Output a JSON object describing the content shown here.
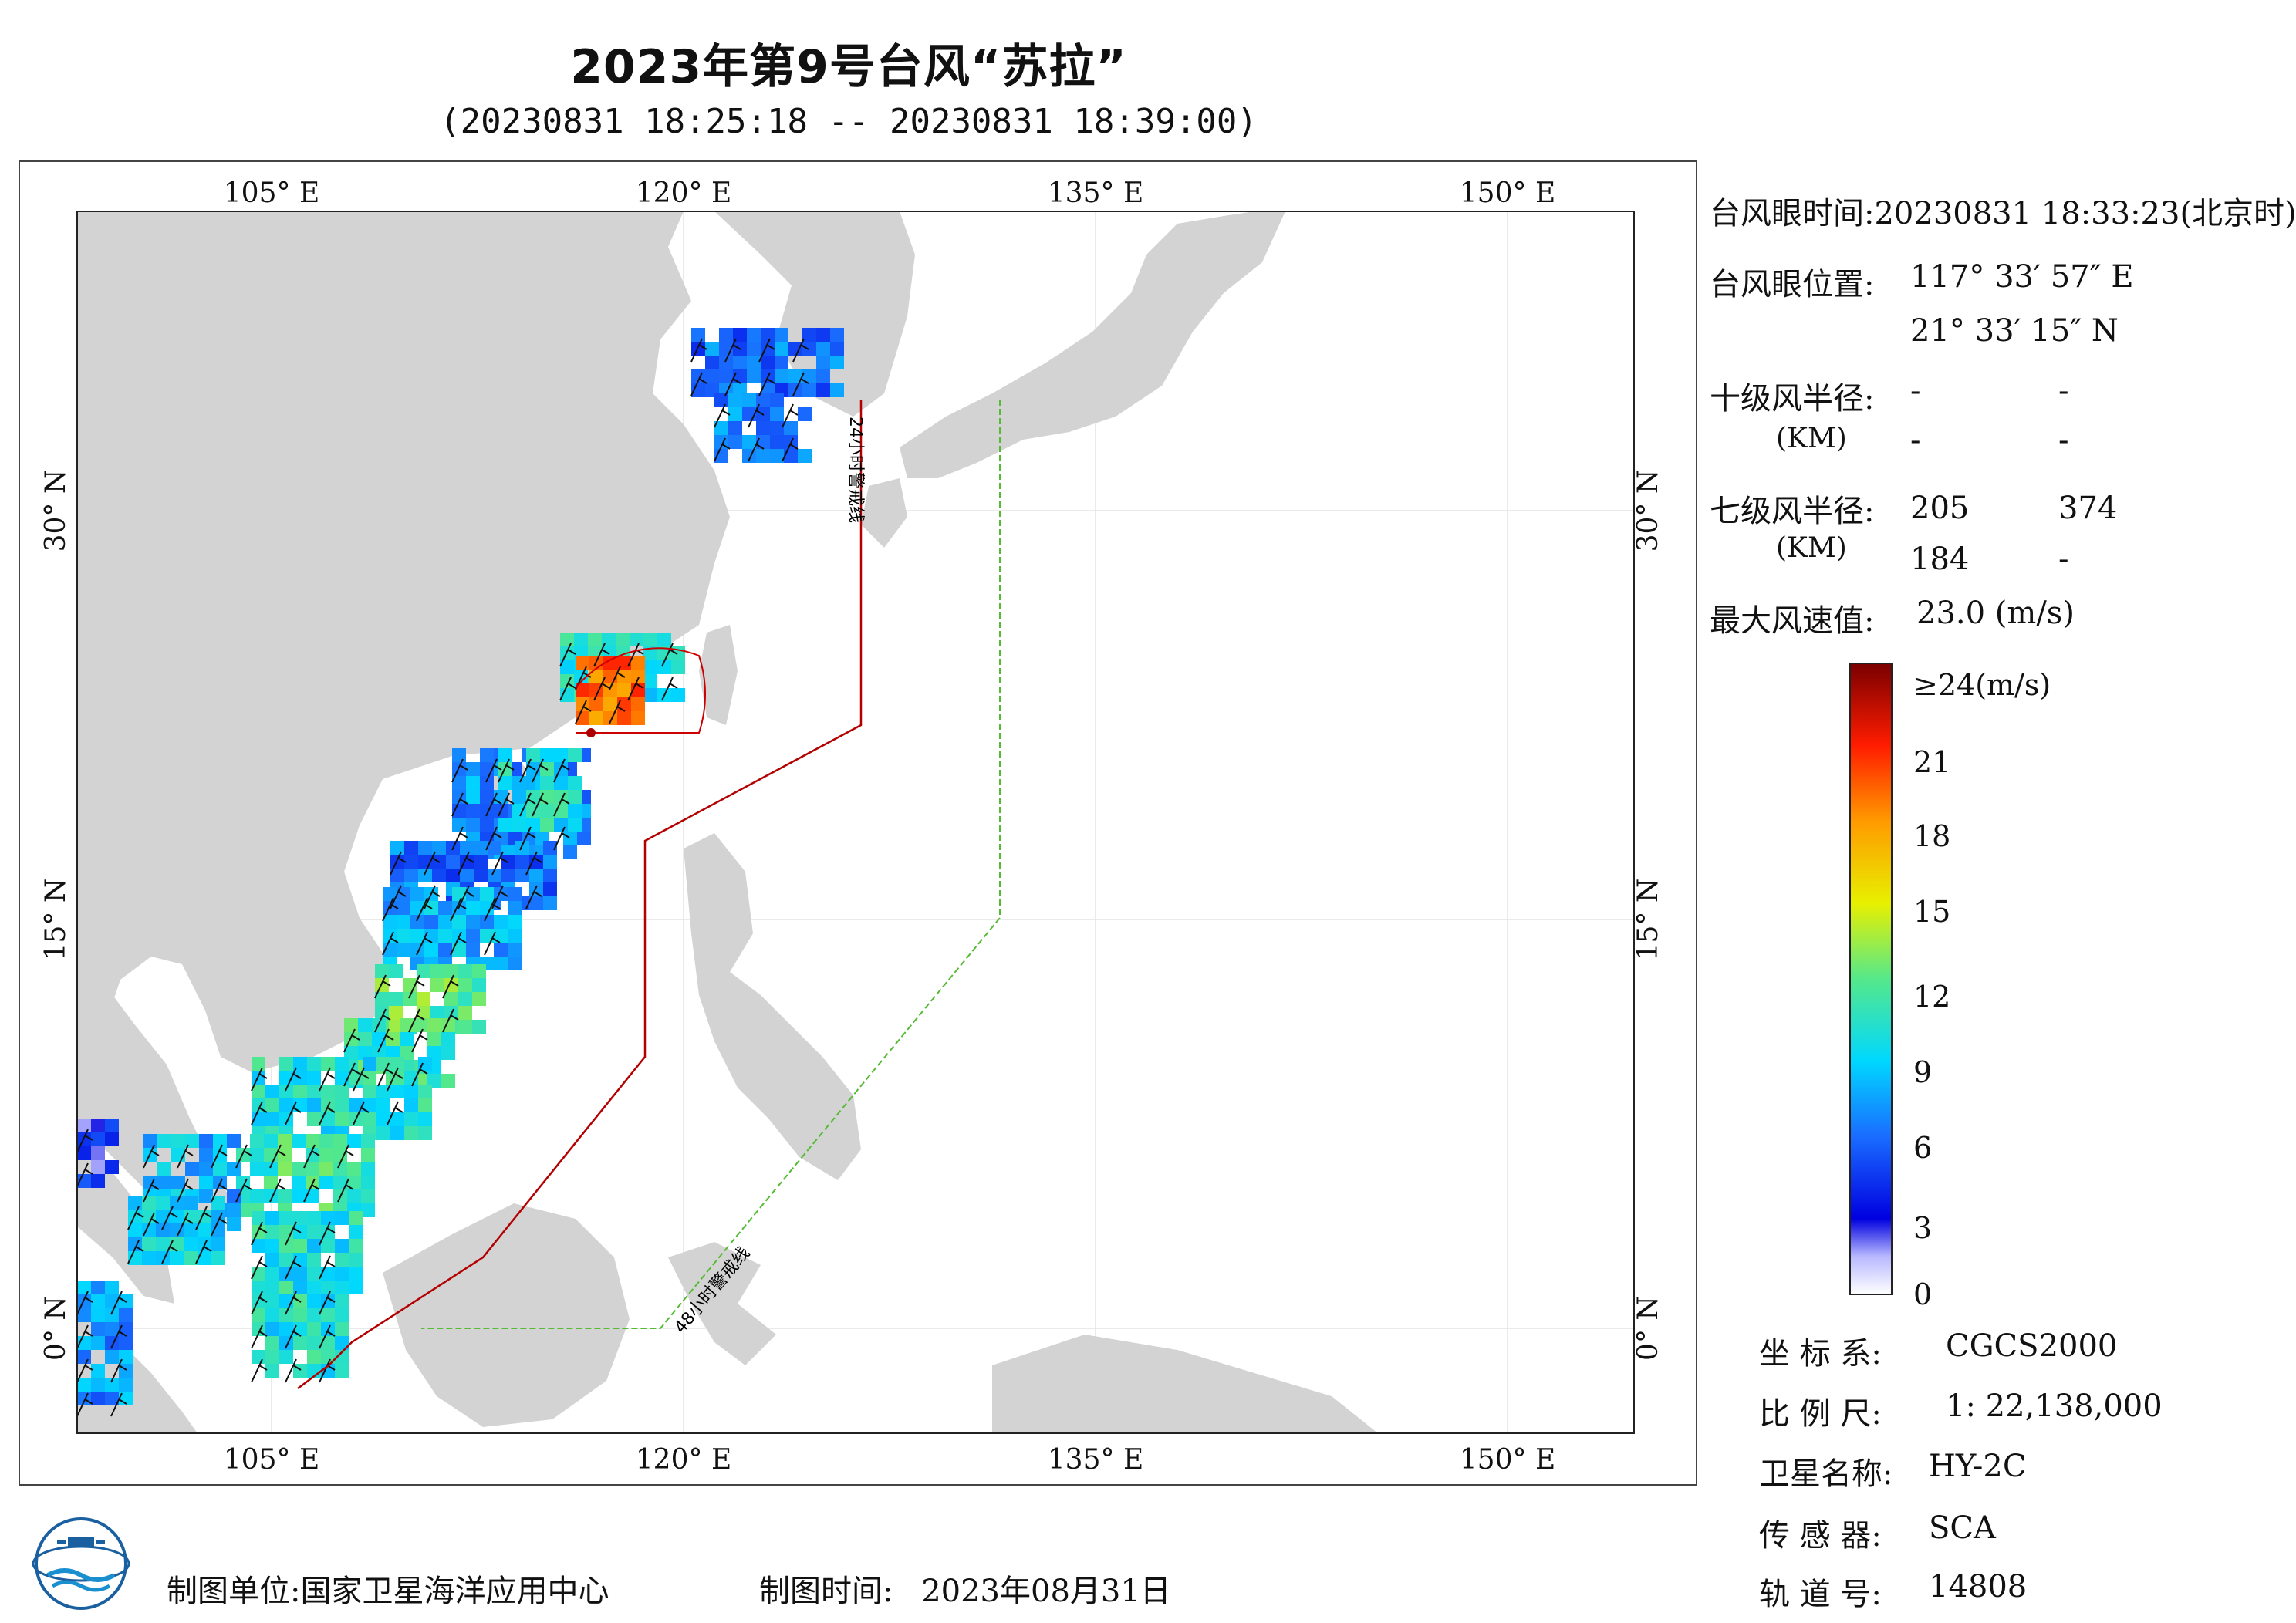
{
  "header": {
    "title": "2023年第9号台风“苏拉”",
    "subtitle": "(20230831 18:25:18 -- 20230831 18:39:00)"
  },
  "map": {
    "lon_ticks_top": [
      "105° E",
      "120° E",
      "135° E",
      "150° E"
    ],
    "lon_ticks_bottom": [
      "105° E",
      "120° E",
      "135° E",
      "150° E"
    ],
    "lat_ticks_left": [
      "30° N",
      "15° N",
      "0° N"
    ],
    "lat_ticks_right": [
      "30° N",
      "15° N",
      "0° N"
    ],
    "line_24h_label": "24小时警戒线",
    "line_48h_label": "48小时警戒线",
    "colors": {
      "land": "#d3d3d3",
      "ocean": "#ffffff",
      "line_24h": "#b30000",
      "line_48h": "#55bb33",
      "grid": "#e0e0e0"
    }
  },
  "info": {
    "eye_time_label": "台风眼时间:",
    "eye_time_value": "20230831 18:33:23(北京时)",
    "eye_pos_label": "台风眼位置:",
    "eye_lon": "117° 33′ 57″ E",
    "eye_lat": "21° 33′ 15″ N",
    "r10_label": "十级风半径:",
    "r10_unit": "(KM)",
    "r10_values": [
      "-",
      "-",
      "-",
      "-"
    ],
    "r7_label": "七级风半径:",
    "r7_unit": "(KM)",
    "r7_values": [
      "205",
      "374",
      "184",
      "-"
    ],
    "max_wind_label": "最大风速值:",
    "max_wind_value": "23.0 (m/s)"
  },
  "colorbar": {
    "labels": [
      "≥24(m/s)",
      "21",
      "18",
      "15",
      "12",
      "9",
      "6",
      "3",
      "0"
    ],
    "values": [
      24,
      21,
      18,
      15,
      12,
      9,
      6,
      3,
      0
    ]
  },
  "meta": {
    "crs_label": "坐 标 系:",
    "crs_value": "CGCS2000",
    "scale_label": "比 例 尺:",
    "scale_value": "1: 22,138,000",
    "sat_label": "卫星名称:",
    "sat_value": "HY-2C",
    "sensor_label": "传 感 器:",
    "sensor_value": "SCA",
    "orbit_label": "轨 道 号:",
    "orbit_value": "14808"
  },
  "footer": {
    "producer_label": "制图单位:",
    "producer_value": "国家卫星海洋应用中心",
    "date_label": "制图时间:",
    "date_value": "2023年08月31日"
  }
}
